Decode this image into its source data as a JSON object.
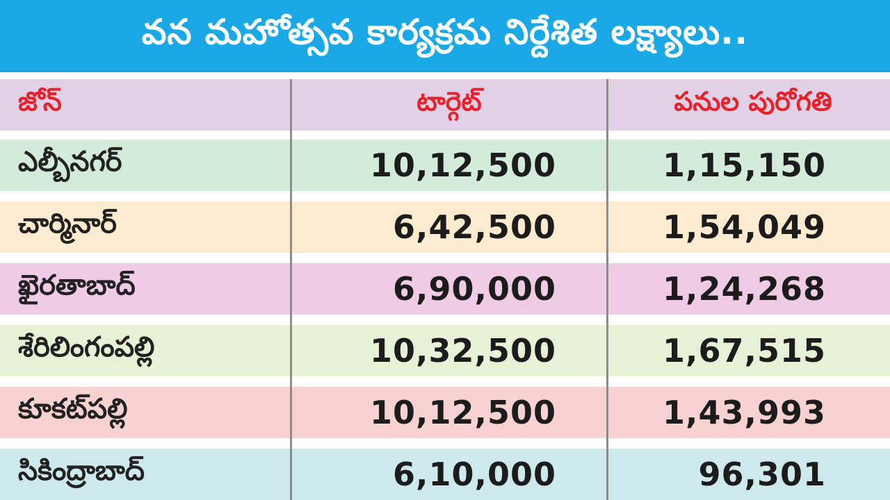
{
  "title": "వన మహోత్సవ కార్యక్రమ నిర్దేశిత లక్ష్యాలు..",
  "headers": {
    "zone": "జోన్",
    "target": "టార్గెట్",
    "progress": "పనుల పురోగతి"
  },
  "rows": [
    {
      "zone": "ఎల్బీనగర్",
      "target": "10,12,500",
      "progress": "1,15,150",
      "color": "#d3ecd9"
    },
    {
      "zone": "చార్మినార్",
      "target": "6,42,500",
      "progress": "1,54,049",
      "color": "#fdebd0"
    },
    {
      "zone": "ఖైరతాబాద్",
      "target": "6,90,000",
      "progress": "1,24,268",
      "color": "#efcbe6"
    },
    {
      "zone": "శేరిలింగంపల్లి",
      "target": "10,32,500",
      "progress": "1,67,515",
      "color": "#e6f1d6"
    },
    {
      "zone": "కూకట్‌పల్లి",
      "target": "10,12,500",
      "progress": "1,43,993",
      "color": "#f8d1d1"
    },
    {
      "zone": "సికింద్రాబాద్",
      "target": "6,10,000",
      "progress": "96,301",
      "color": "#cde9ec"
    }
  ],
  "colors": {
    "title_bg": "#1aa9e6",
    "header_bg": "#e1d0e6",
    "header_text": "#e8212b"
  }
}
